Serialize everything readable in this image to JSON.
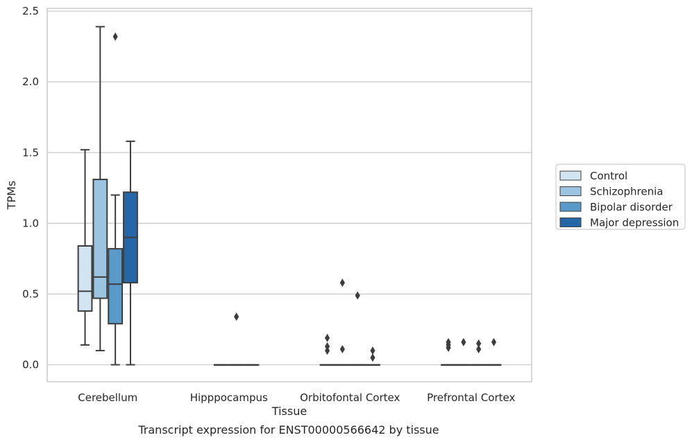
{
  "chart_data": {
    "type": "boxplot",
    "title": "",
    "caption": "Transcript expression for ENST00000566642 by tissue",
    "xlabel": "Tissue",
    "ylabel": "TPMs",
    "ylim": [
      -0.12,
      2.52
    ],
    "yticks": [
      0.0,
      0.5,
      1.0,
      1.5,
      2.0,
      2.5
    ],
    "ytick_labels": [
      "0.0",
      "0.5",
      "1.0",
      "1.5",
      "2.0",
      "2.5"
    ],
    "grid": "horizontal",
    "legend_position": "right",
    "categories": [
      "Cerebellum",
      "Hipppocampus",
      "Orbitofontal Cortex",
      "Prefrontal Cortex"
    ],
    "series": [
      {
        "name": "Control",
        "color": "#d2e3f2",
        "boxes": [
          {
            "q1": 0.38,
            "median": 0.52,
            "q3": 0.84,
            "whisker_low": 0.14,
            "whisker_high": 1.52,
            "outliers": []
          },
          null,
          {
            "q1": 0.0,
            "median": 0.0,
            "q3": 0.0,
            "whisker_low": 0.0,
            "whisker_high": 0.0,
            "outliers": [
              0.1,
              0.13,
              0.19
            ]
          },
          {
            "q1": 0.0,
            "median": 0.0,
            "q3": 0.0,
            "whisker_low": 0.0,
            "whisker_high": 0.0,
            "outliers": [
              0.12,
              0.14,
              0.16
            ]
          }
        ]
      },
      {
        "name": "Schizophrenia",
        "color": "#9ac4df",
        "boxes": [
          {
            "q1": 0.47,
            "median": 0.62,
            "q3": 1.31,
            "whisker_low": 0.1,
            "whisker_high": 2.39,
            "outliers": []
          },
          {
            "q1": 0.0,
            "median": 0.0,
            "q3": 0.0,
            "whisker_low": 0.0,
            "whisker_high": 0.0,
            "outliers": []
          },
          {
            "q1": 0.0,
            "median": 0.0,
            "q3": 0.0,
            "whisker_low": 0.0,
            "whisker_high": 0.0,
            "outliers": [
              0.11,
              0.58
            ]
          },
          {
            "q1": 0.0,
            "median": 0.0,
            "q3": 0.0,
            "whisker_low": 0.0,
            "whisker_high": 0.0,
            "outliers": [
              0.16
            ]
          }
        ]
      },
      {
        "name": "Bipolar disorder",
        "color": "#5a9ac9",
        "boxes": [
          {
            "q1": 0.29,
            "median": 0.57,
            "q3": 0.82,
            "whisker_low": 0.0,
            "whisker_high": 1.2,
            "outliers": [
              2.32
            ]
          },
          {
            "q1": 0.0,
            "median": 0.0,
            "q3": 0.0,
            "whisker_low": 0.0,
            "whisker_high": 0.0,
            "outliers": [
              0.34
            ]
          },
          {
            "q1": 0.0,
            "median": 0.0,
            "q3": 0.0,
            "whisker_low": 0.0,
            "whisker_high": 0.0,
            "outliers": [
              0.49
            ]
          },
          {
            "q1": 0.0,
            "median": 0.0,
            "q3": 0.0,
            "whisker_low": 0.0,
            "whisker_high": 0.0,
            "outliers": [
              0.11,
              0.15
            ]
          }
        ]
      },
      {
        "name": "Major depression",
        "color": "#2566a6",
        "boxes": [
          {
            "q1": 0.58,
            "median": 0.9,
            "q3": 1.22,
            "whisker_low": 0.0,
            "whisker_high": 1.58,
            "outliers": []
          },
          {
            "q1": 0.0,
            "median": 0.0,
            "q3": 0.0,
            "whisker_low": 0.0,
            "whisker_high": 0.0,
            "outliers": []
          },
          {
            "q1": 0.0,
            "median": 0.0,
            "q3": 0.0,
            "whisker_low": 0.0,
            "whisker_high": 0.0,
            "outliers": [
              0.05,
              0.1
            ]
          },
          {
            "q1": 0.0,
            "median": 0.0,
            "q3": 0.0,
            "whisker_low": 0.0,
            "whisker_high": 0.0,
            "outliers": [
              0.16
            ]
          }
        ]
      }
    ]
  }
}
